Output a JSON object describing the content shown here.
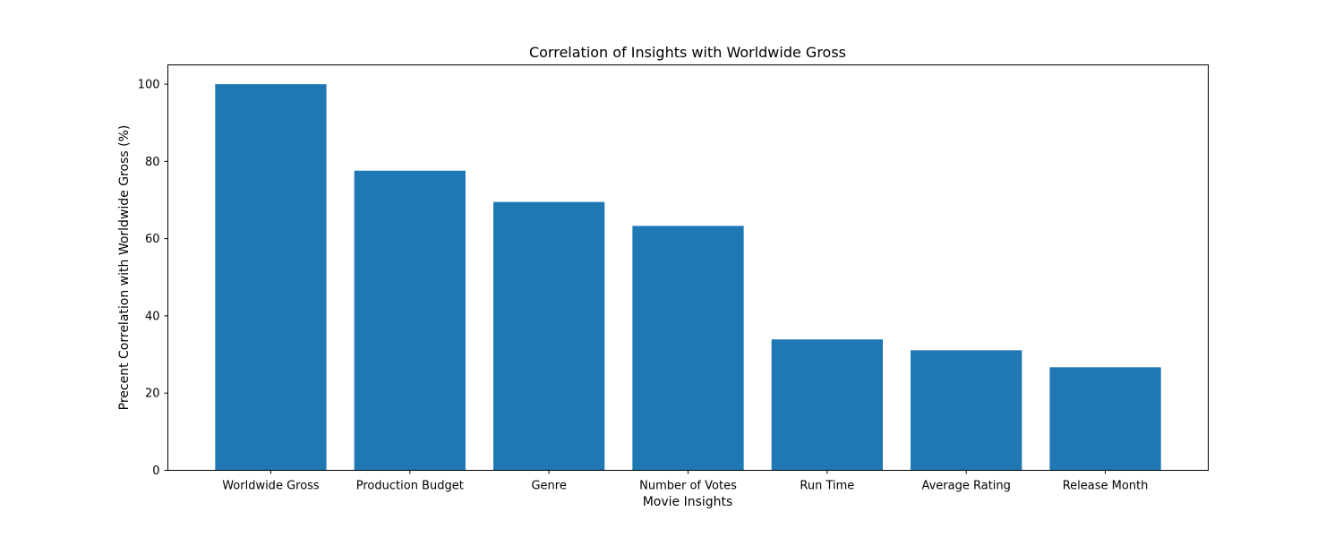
{
  "chart_data": {
    "type": "bar",
    "title": "Correlation of Insights with Worldwide Gross",
    "xlabel": "Movie Insights",
    "ylabel": "Precent Correlation with Worldwide Gross (%)",
    "categories": [
      "Worldwide Gross",
      "Production Budget",
      "Genre",
      "Number of Votes",
      "Run Time",
      "Average Rating",
      "Release Month"
    ],
    "values": [
      100,
      77.6,
      69.5,
      63.3,
      33.9,
      31.1,
      26.7
    ],
    "ylim": [
      0,
      105
    ],
    "yticks": [
      0,
      20,
      40,
      60,
      80,
      100
    ],
    "grid": false,
    "colors": {
      "bar": "#1f77b4"
    }
  }
}
